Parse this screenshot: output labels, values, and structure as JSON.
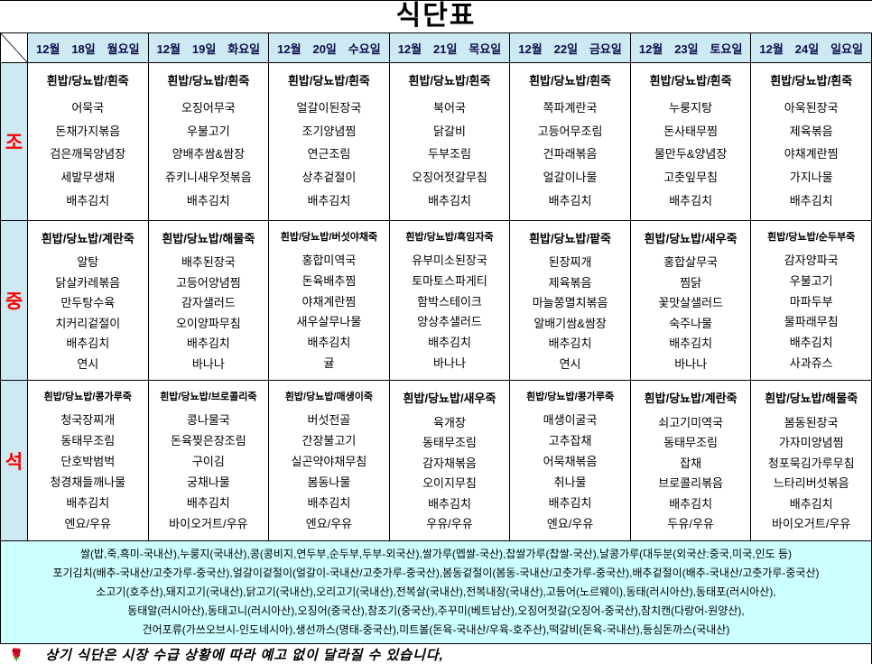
{
  "title": "식단표",
  "columns": [
    {
      "month": "12월",
      "day": "18일",
      "weekday": "월요일"
    },
    {
      "month": "12월",
      "day": "19일",
      "weekday": "화요일"
    },
    {
      "month": "12월",
      "day": "20일",
      "weekday": "수요일"
    },
    {
      "month": "12월",
      "day": "21일",
      "weekday": "목요일"
    },
    {
      "month": "12월",
      "day": "22일",
      "weekday": "금요일"
    },
    {
      "month": "12월",
      "day": "23일",
      "weekday": "토요일"
    },
    {
      "month": "12월",
      "day": "24일",
      "weekday": "일요일"
    }
  ],
  "rows": [
    {
      "label": "조",
      "cells": [
        {
          "rice": "흰밥/당뇨밥/흰죽",
          "items": [
            "어묵국",
            "돈채가지볶음",
            "검은깨묵양념장",
            "세발무생채",
            "배추김치"
          ]
        },
        {
          "rice": "흰밥/당뇨밥/흰죽",
          "items": [
            "오징어무국",
            "우불고기",
            "양배추쌈&쌈장",
            "쥬키니새우젓볶음",
            "배추김치"
          ]
        },
        {
          "rice": "흰밥/당뇨밥/흰죽",
          "items": [
            "얼갈이된장국",
            "조기양념찜",
            "연근조림",
            "상추겉절이",
            "배추김치"
          ]
        },
        {
          "rice": "흰밥/당뇨밥/흰죽",
          "items": [
            "북어국",
            "닭갈비",
            "두부조림",
            "오징어젓갈무침",
            "배추김치"
          ]
        },
        {
          "rice": "흰밥/당뇨밥/흰죽",
          "items": [
            "쪽파계란국",
            "고등어무조림",
            "건파래볶음",
            "얼갈이나물",
            "배추김치"
          ]
        },
        {
          "rice": "흰밥/당뇨밥/흰죽",
          "items": [
            "누룽지탕",
            "돈사태무찜",
            "물만두&양념장",
            "고춧잎무침",
            "배추김치"
          ]
        },
        {
          "rice": "흰밥/당뇨밥/흰죽",
          "items": [
            "아욱된장국",
            "제육볶음",
            "야채계란찜",
            "가지나물",
            "배추김치"
          ]
        }
      ]
    },
    {
      "label": "중",
      "cells": [
        {
          "rice": "흰밥/당뇨밥/계란죽",
          "items": [
            "알탕",
            "닭살카레볶음",
            "만두탕수육",
            "치커리겉절이",
            "배추김치",
            "연시"
          ]
        },
        {
          "rice": "흰밥/당뇨밥/해물죽",
          "items": [
            "배추된장국",
            "고등어양념찜",
            "감자샐러드",
            "오이양파무침",
            "배추김치",
            "바나나"
          ]
        },
        {
          "rice": "흰밥/당뇨밥/버섯야채죽",
          "items": [
            "홍합미역국",
            "돈육배추찜",
            "야채계란찜",
            "새우살무나물",
            "배추김치",
            "귤"
          ]
        },
        {
          "rice": "흰밥/당뇨밥/흑임자죽",
          "items": [
            "유부미소된장국",
            "토마토스파게티",
            "함박스테이크",
            "양상추샐러드",
            "배추김치",
            "바나나"
          ]
        },
        {
          "rice": "흰밥/당뇨밥/팥죽",
          "items": [
            "된장찌개",
            "제육볶음",
            "마늘쫑멸치볶음",
            "알배기쌈&쌈장",
            "배추김치",
            "연시"
          ]
        },
        {
          "rice": "흰밥/당뇨밥/새우죽",
          "items": [
            "홍합살무국",
            "찜닭",
            "꽃맛살샐러드",
            "숙주나물",
            "배추김치",
            "바나나"
          ]
        },
        {
          "rice": "흰밥/당뇨밥/순두부죽",
          "items": [
            "감자양파국",
            "우불고기",
            "마파두부",
            "물파래무침",
            "배추김치",
            "사과쥬스"
          ]
        }
      ]
    },
    {
      "label": "석",
      "cells": [
        {
          "rice": "흰밥/당뇨밥/콩가루죽",
          "items": [
            "청국장찌개",
            "동태무조림",
            "단호박범벅",
            "청경채들깨나물",
            "배추김치",
            "엔요/우유"
          ]
        },
        {
          "rice": "흰밥/당뇨밥/브로콜리죽",
          "items": [
            "콩나물국",
            "돈육찢은장조림",
            "구이김",
            "궁채나물",
            "배추김치",
            "바이오거트/우유"
          ]
        },
        {
          "rice": "흰밥/당뇨밥/매생이죽",
          "items": [
            "버섯전골",
            "간장불고기",
            "실곤약야채무침",
            "봄동나물",
            "배추김치",
            "엔요/우유"
          ]
        },
        {
          "rice": "흰밥/당뇨밥/새우죽",
          "items": [
            "육개장",
            "동태무조림",
            "감자채볶음",
            "오이지무침",
            "배추김치",
            "우유/우유"
          ]
        },
        {
          "rice": "흰밥/당뇨밥/콩가루죽",
          "items": [
            "매생이굴국",
            "고추잡채",
            "어묵채볶음",
            "취나물",
            "배추김치",
            "엔요/우유"
          ]
        },
        {
          "rice": "흰밥/당뇨밥/계란죽",
          "items": [
            "쇠고기미역국",
            "동태무조림",
            "잡채",
            "브로콜리볶음",
            "배추김치",
            "두유/우유"
          ]
        },
        {
          "rice": "흰밥/당뇨밥/해물죽",
          "items": [
            "봄동된장국",
            "가자미양념찜",
            "청포묵김가루무침",
            "느타리버섯볶음",
            "배추김치",
            "바이오거트/우유"
          ]
        }
      ]
    }
  ],
  "footer_lines": [
    "쌀(밥,죽,흑미-국내산),누룽지(국내산),콩(콩비지,연두부,순두부,두부-외국산),쌀가루(멥쌀-국산),찹쌀가루(찹쌀-국산),날콩가루(대두분(외국산:중국,미국,인도 등)",
    "포기김치(배추-국내산/고춧가루-중국산),얼갈이겉절이(얼갈이-국내산/고춧가루-중국산),봄동겉절이(봄동-국내산/고춧가루-중국산),배추겉절이(배추-국내산/고춧가루-중국산)",
    "소고기(호주산),돼지고기(국내산),닭고기(국내산),오리고기(국내산),전복살(국내산),전복내장(국내산),고등어(노르웨이),동태(러시아산),동태포(러시아산),",
    "동태알(러시아산),동태고니(러시아산),오징어(중국산),참조기(중국산),주꾸미(베트남산),오징어젓갈(오징어-중국산),참치캔(다랑어-원양산),",
    "건어포류(가쓰오브시-인도네시아),생선까스(명태-중국산),미트볼(돈육-국내산/우육-호주산),떡갈비(돈육-국내산),등심돈까스(국내산)"
  ],
  "note": {
    "icon": "rose",
    "text": "상기 식단은 시장 수급 상황에 따라 예고 없이 달라질 수 있습니다,"
  },
  "colors": {
    "header_bg": "#cde9f2",
    "footer_bg": "#ccffff",
    "row_label_text": "#ff0000",
    "header_text": "#0d0d4d",
    "border": "#000000"
  }
}
